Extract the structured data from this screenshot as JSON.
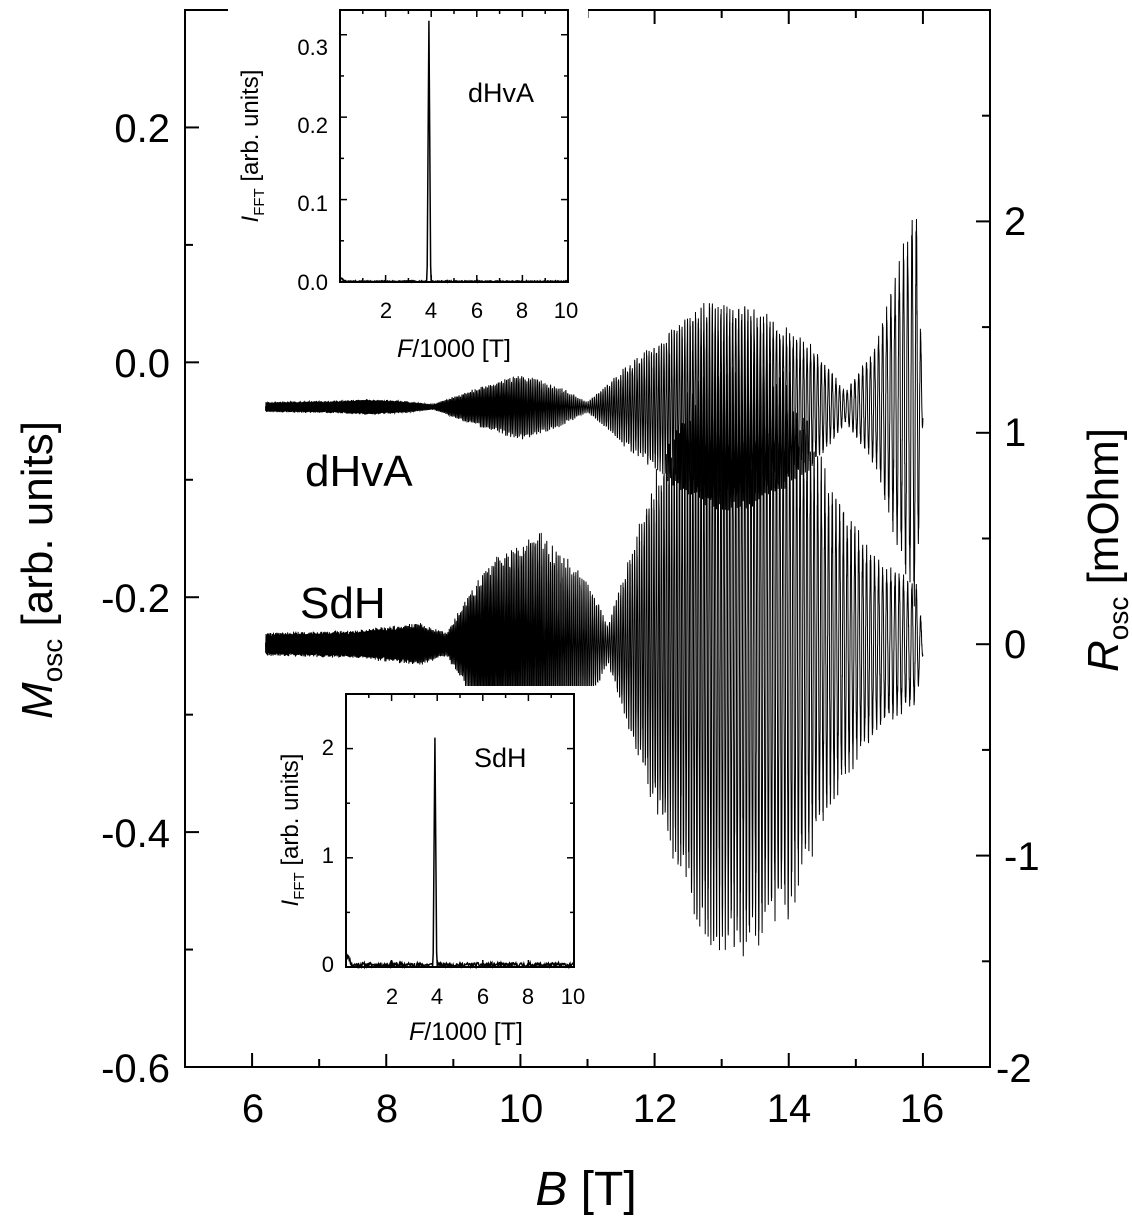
{
  "colors": {
    "line": "#000000",
    "axis": "#000000",
    "background": "#ffffff"
  },
  "chart_data": [
    {
      "id": "main",
      "type": "line",
      "xlabel_main": "B",
      "xlabel_unit": " [T]",
      "ylabel_left_main": "M",
      "ylabel_left_sub": "osc",
      "ylabel_left_unit": " [arb. units]",
      "ylabel_right_main": "R",
      "ylabel_right_sub": "osc",
      "ylabel_right_unit": " [mOhm]",
      "xlim": [
        5,
        17
      ],
      "ylim_left": [
        -0.6,
        0.3
      ],
      "ylim_right": [
        -2,
        3
      ],
      "x_ticks": [
        "6",
        "8",
        "10",
        "12",
        "14",
        "16"
      ],
      "y_left_ticks": [
        "-0.6",
        "-0.4",
        "-0.2",
        "0.0",
        "0.2"
      ],
      "y_right_ticks": [
        "-2",
        "-1",
        "0",
        "1",
        "2"
      ],
      "series": [
        {
          "name": "dHvA",
          "axis": "left",
          "x_range": [
            6.2,
            16.0
          ],
          "baseline": -0.038,
          "envelope": [
            [
              6.2,
              0.004
            ],
            [
              7.3,
              0.005
            ],
            [
              7.7,
              0.006
            ],
            [
              8.2,
              0.005
            ],
            [
              8.7,
              0.002
            ],
            [
              9.2,
              0.012
            ],
            [
              10.0,
              0.026
            ],
            [
              10.6,
              0.015
            ],
            [
              11.0,
              0.004
            ],
            [
              11.5,
              0.028
            ],
            [
              12.3,
              0.062
            ],
            [
              12.8,
              0.082
            ],
            [
              13.3,
              0.08
            ],
            [
              13.8,
              0.068
            ],
            [
              14.4,
              0.045
            ],
            [
              14.85,
              0.012
            ],
            [
              15.3,
              0.048
            ],
            [
              15.9,
              0.16
            ],
            [
              16.0,
              0.01
            ]
          ],
          "label": "dHvA"
        },
        {
          "name": "SdH",
          "axis": "right",
          "x_range": [
            6.2,
            16.0
          ],
          "baseline": 0.0,
          "envelope": [
            [
              6.2,
              0.05
            ],
            [
              7.5,
              0.06
            ],
            [
              8.5,
              0.09
            ],
            [
              8.9,
              0.05
            ],
            [
              9.5,
              0.35
            ],
            [
              10.3,
              0.48
            ],
            [
              11.0,
              0.28
            ],
            [
              11.3,
              0.08
            ],
            [
              12.0,
              0.72
            ],
            [
              12.8,
              1.3
            ],
            [
              13.4,
              1.35
            ],
            [
              14.0,
              1.17
            ],
            [
              14.6,
              0.7
            ],
            [
              15.3,
              0.38
            ],
            [
              15.9,
              0.26
            ],
            [
              16.0,
              0.05
            ]
          ],
          "label": "SdH"
        }
      ]
    },
    {
      "id": "inset_dhva",
      "type": "line",
      "label": "dHvA",
      "xlabel_main": "F",
      "xlabel_unit": "/1000 [T]",
      "ylabel_main": "I",
      "ylabel_sub": "FFT",
      "ylabel_unit": " [arb. units]",
      "xlim": [
        0,
        10
      ],
      "ylim": [
        0,
        0.33
      ],
      "x_ticks": [
        "2",
        "4",
        "6",
        "8",
        "10"
      ],
      "y_ticks": [
        "0.0",
        "0.1",
        "0.2",
        "0.3"
      ],
      "peak": {
        "x": 3.9,
        "y": 0.317
      }
    },
    {
      "id": "inset_sdh",
      "type": "line",
      "label": "SdH",
      "xlabel_main": "F",
      "xlabel_unit": "/1000 [T]",
      "ylabel_main": "I",
      "ylabel_sub": "FFT",
      "ylabel_unit": " [arb. units]",
      "xlim": [
        0,
        10
      ],
      "ylim": [
        0,
        2.5
      ],
      "x_ticks": [
        "2",
        "4",
        "6",
        "8",
        "10"
      ],
      "y_ticks": [
        "0",
        "1",
        "2"
      ],
      "peak": {
        "x": 3.9,
        "y": 2.1
      }
    }
  ]
}
